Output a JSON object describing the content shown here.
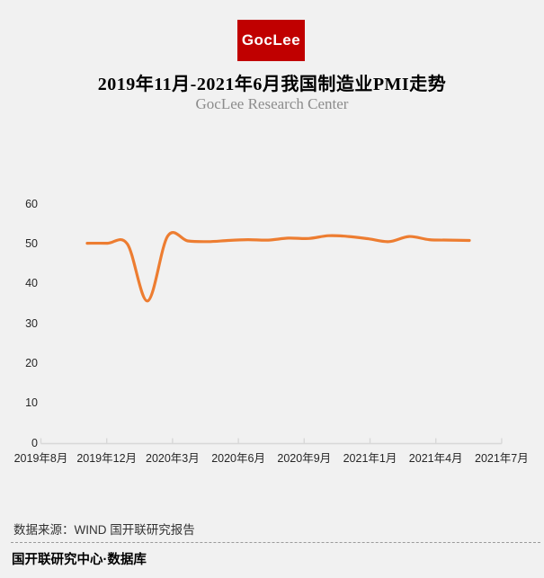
{
  "header": {
    "logo_text": "GocLee",
    "logo_bg_color": "#c00000",
    "title": "2019年11月-2021年6月我国制造业PMI走势",
    "subtitle": "GocLee Research Center"
  },
  "chart_data": {
    "type": "line",
    "title": "2019年11月-2021年6月我国制造业PMI走势",
    "x": [
      "2019年11月",
      "2019年12月",
      "2020年1月",
      "2020年2月",
      "2020年3月",
      "2020年4月",
      "2020年5月",
      "2020年6月",
      "2020年7月",
      "2020年8月",
      "2020年9月",
      "2020年10月",
      "2020年11月",
      "2020年12月",
      "2021年1月",
      "2021年2月",
      "2021年3月",
      "2021年4月",
      "2021年5月",
      "2021年6月"
    ],
    "values": [
      50.2,
      50.2,
      50.0,
      35.7,
      52.0,
      50.8,
      50.6,
      50.9,
      51.1,
      51.0,
      51.5,
      51.4,
      52.1,
      51.9,
      51.3,
      50.6,
      51.9,
      51.1,
      51.0,
      50.9
    ],
    "x_axis_labels": [
      "2019年8月",
      "2019年12月",
      "2020年3月",
      "2020年6月",
      "2020年9月",
      "2021年1月",
      "2021年4月",
      "2021年7月"
    ],
    "y_ticks": [
      60,
      50,
      40,
      30,
      20,
      10,
      0
    ],
    "ylim": [
      0,
      60
    ],
    "line_color": "#ED7D31",
    "axis_color": "#d8d8d8",
    "smooth": true,
    "grid": false,
    "legend": "none"
  },
  "footer": {
    "source": "数据来源：WIND 国开联研究报告",
    "brand": "国开联研究中心·数据库"
  }
}
